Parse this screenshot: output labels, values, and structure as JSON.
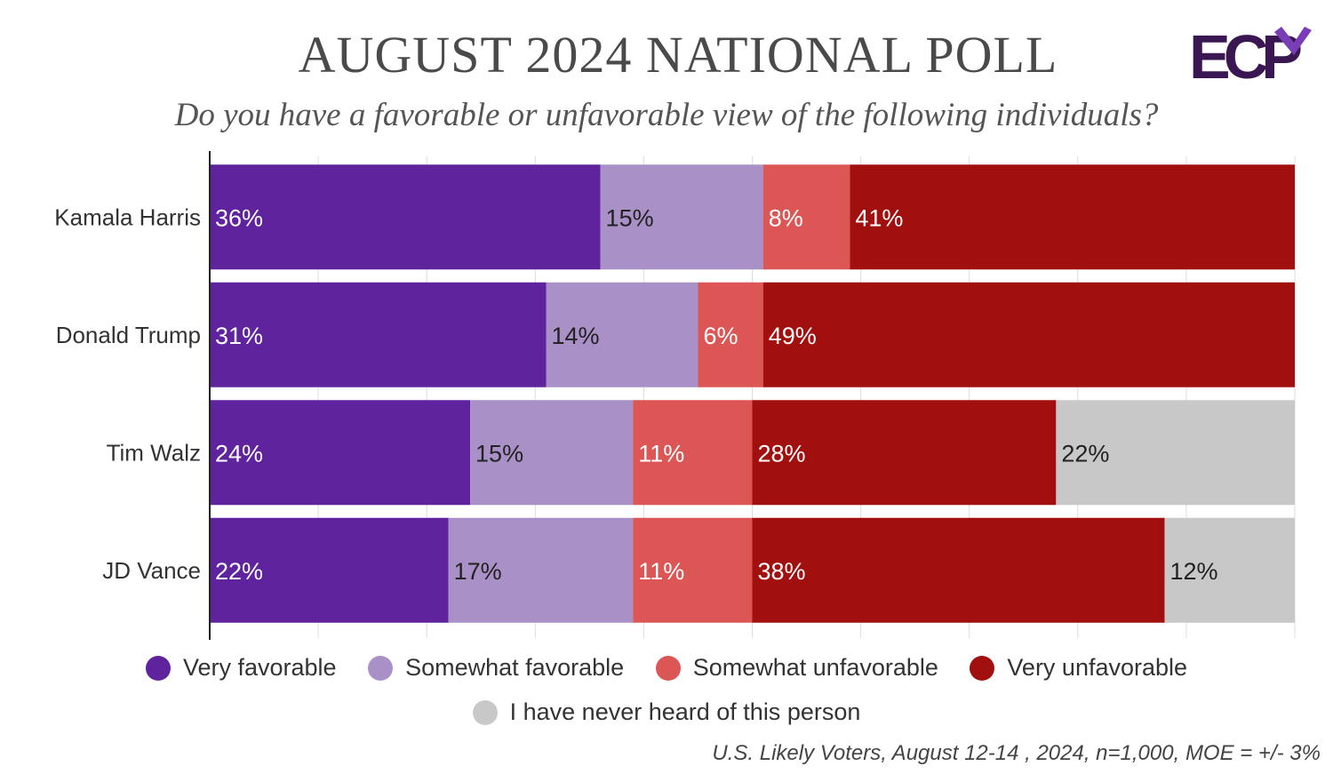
{
  "header": {
    "title": "AUGUST 2024 NATIONAL POLL",
    "subtitle": "Do you have a favorable or unfavorable view of the following individuals?",
    "logo_text": "ECP"
  },
  "footnote": "U.S. Likely Voters, August 12-14 , 2024, n=1,000, MOE = +/- 3%",
  "legend": [
    {
      "label": "Very favorable",
      "color": "#5e239d"
    },
    {
      "label": "Somewhat favorable",
      "color": "#a990c7"
    },
    {
      "label": "Somewhat unfavorable",
      "color": "#dc5656"
    },
    {
      "label": "Very unfavorable",
      "color": "#a10f0e"
    },
    {
      "label": "I have never heard of this person",
      "color": "#c8c8c8"
    }
  ],
  "chart_data": {
    "type": "bar",
    "orientation": "horizontal",
    "stacked": true,
    "categories": [
      "Kamala Harris",
      "Donald Trump",
      "Tim Walz",
      "JD Vance"
    ],
    "series": [
      {
        "name": "Very favorable",
        "values": [
          36,
          31,
          24,
          22
        ],
        "labels": [
          "36%",
          "31%",
          "24%",
          "22%"
        ],
        "color": "#5e239d",
        "label_color": "#ffffff"
      },
      {
        "name": "Somewhat favorable",
        "values": [
          15,
          14,
          15,
          17
        ],
        "labels": [
          "15%",
          "14%",
          "15%",
          "17%"
        ],
        "color": "#a990c7",
        "label_color": "#222222"
      },
      {
        "name": "Somewhat unfavorable",
        "values": [
          8,
          6,
          11,
          11
        ],
        "labels": [
          "8%",
          "6%",
          "11%",
          "11%"
        ],
        "color": "#dc5656",
        "label_color": "#ffffff"
      },
      {
        "name": "Very unfavorable",
        "values": [
          41,
          49,
          28,
          38
        ],
        "labels": [
          "41%",
          "49%",
          "28%",
          "38%"
        ],
        "color": "#a10f0e",
        "label_color": "#ffffff"
      },
      {
        "name": "I have never heard of this person",
        "values": [
          0,
          0,
          22,
          12
        ],
        "labels": [
          "",
          "",
          "22%",
          "12%"
        ],
        "color": "#c8c8c8",
        "label_color": "#222222"
      }
    ],
    "xlim": [
      0,
      100
    ],
    "grid": true
  }
}
